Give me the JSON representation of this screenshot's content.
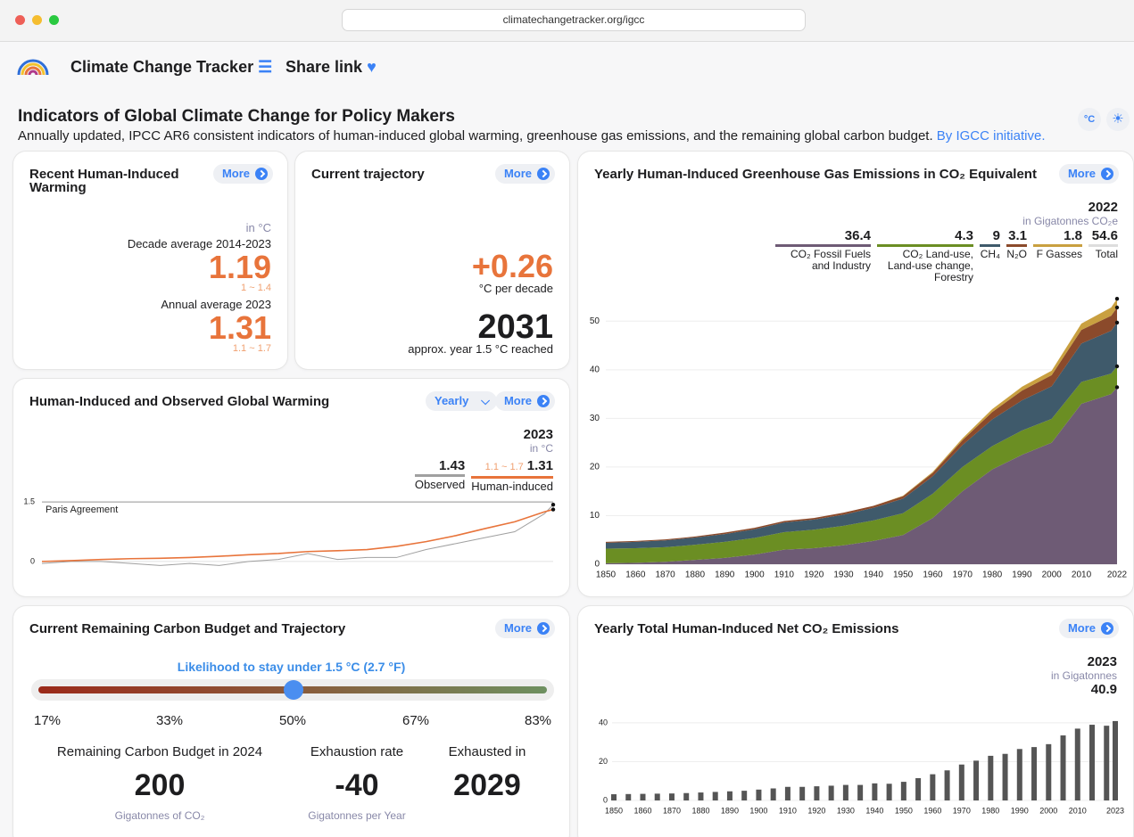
{
  "browser": {
    "url": "climatechangetracker.org/igcc"
  },
  "header": {
    "brand": "Climate Change Tracker",
    "share": "Share link"
  },
  "page": {
    "title": "Indicators of Global Climate Change for Policy Makers",
    "subtitle": "Annually updated, IPCC AR6 consistent indicators of human-induced global warming, greenhouse gas emissions, and the remaining global carbon budget.",
    "link": "By IGCC initiative.",
    "unit_button": "°C"
  },
  "warming_card": {
    "title": "Recent Human-Induced Warming",
    "more": "More",
    "unit": "in °C",
    "decade_label": "Decade average 2014-2023",
    "decade_value": "1.19",
    "decade_range": "1 ~ 1.4",
    "annual_label": "Annual average 2023",
    "annual_value": "1.31",
    "annual_range": "1.1 ~ 1.7"
  },
  "trajectory_card": {
    "title": "Current trajectory",
    "more": "More",
    "rate": "+0.26",
    "rate_unit": "°C per decade",
    "year": "2031",
    "year_label": "approx. year 1.5 °C reached"
  },
  "budget_card": {
    "title": "Current Remaining Carbon Budget and Trajectory",
    "more": "More",
    "slider_title": "Likelihood to stay under 1.5 °C (2.7 °F)",
    "likelihoods": [
      "17%",
      "33%",
      "50%",
      "67%",
      "83%"
    ],
    "stats": [
      {
        "label": "Remaining Carbon Budget in 2024",
        "value": "200",
        "unit": "Gigatonnes of CO₂"
      },
      {
        "label": "Exhaustion rate",
        "value": "-40",
        "unit": "Gigatonnes per Year"
      },
      {
        "label": "Exhausted in",
        "value": "2029"
      }
    ]
  },
  "chart_data": [
    {
      "type": "area",
      "stacked": true,
      "title": "Yearly Human-Induced Greenhouse Gas Emissions in CO₂ Equivalent",
      "more": "More",
      "unit": "in Gigatonnes CO₂e",
      "x": [
        1850,
        1860,
        1870,
        1880,
        1890,
        1900,
        1910,
        1920,
        1930,
        1940,
        1950,
        1960,
        1970,
        1980,
        1990,
        2000,
        2010,
        2020,
        2022
      ],
      "series": [
        {
          "name": "CO₂ Fossil Fuels and Industry",
          "color": "#6e5b75",
          "values": [
            0.2,
            0.3,
            0.5,
            0.9,
            1.3,
            2.0,
            3.0,
            3.3,
            3.9,
            4.8,
            6.0,
            9.5,
            15.0,
            19.5,
            22.5,
            25.0,
            33.0,
            35.0,
            36.4
          ]
        },
        {
          "name": "CO₂ Land-use, Land-use change, Forestry",
          "color": "#6b8e23",
          "values": [
            3.0,
            3.0,
            3.0,
            3.1,
            3.3,
            3.4,
            3.6,
            3.8,
            4.0,
            4.2,
            4.5,
            5.0,
            5.0,
            4.8,
            5.0,
            4.9,
            4.5,
            4.2,
            4.3
          ]
        },
        {
          "name": "CH₄",
          "color": "#3f5a6b",
          "values": [
            1.2,
            1.3,
            1.4,
            1.5,
            1.6,
            1.8,
            2.0,
            2.1,
            2.3,
            2.6,
            3.0,
            3.6,
            4.5,
            5.5,
            6.2,
            6.7,
            7.9,
            8.8,
            9
          ]
        },
        {
          "name": "N₂O",
          "color": "#8b4a2b",
          "values": [
            0.2,
            0.2,
            0.2,
            0.2,
            0.3,
            0.3,
            0.3,
            0.3,
            0.4,
            0.4,
            0.5,
            0.7,
            1.0,
            1.5,
            2.0,
            2.3,
            2.8,
            3.1,
            3.1
          ]
        },
        {
          "name": "F Gasses",
          "color": "#c9a040",
          "values": [
            0,
            0,
            0,
            0,
            0,
            0,
            0,
            0,
            0,
            0,
            0.1,
            0.2,
            0.4,
            0.6,
            0.8,
            0.9,
            1.3,
            1.7,
            1.8
          ]
        }
      ],
      "total": {
        "name": "Total",
        "value": 54.6
      },
      "xlim": [
        1850,
        2022
      ],
      "xticks": [
        1850,
        1860,
        1870,
        1880,
        1890,
        1900,
        1910,
        1920,
        1930,
        1940,
        1950,
        1960,
        1970,
        1980,
        1990,
        2000,
        2010,
        2022
      ],
      "ylim": [
        0,
        55
      ],
      "yticks": [
        0,
        10,
        20,
        30,
        40,
        50
      ],
      "grid": true
    },
    {
      "type": "line",
      "title": "Human-Induced and Observed Global Warming",
      "more": "More",
      "dropdown": "Yearly",
      "unit": "in °C",
      "x": [
        1850,
        1860,
        1870,
        1880,
        1890,
        1900,
        1910,
        1920,
        1930,
        1940,
        1950,
        1960,
        1970,
        1980,
        1990,
        2000,
        2010,
        2020,
        2023
      ],
      "series": [
        {
          "name": "Observed",
          "color": "#a0a0a0",
          "values": [
            -0.05,
            0.0,
            0.0,
            -0.05,
            -0.1,
            -0.05,
            -0.1,
            0.0,
            0.05,
            0.2,
            0.05,
            0.1,
            0.1,
            0.3,
            0.45,
            0.6,
            0.75,
            1.2,
            1.43
          ]
        },
        {
          "name": "Human-induced",
          "color": "#e8743b",
          "range_label": "1.1 ~ 1.7",
          "values": [
            0.0,
            0.02,
            0.05,
            0.07,
            0.08,
            0.1,
            0.13,
            0.17,
            0.2,
            0.25,
            0.27,
            0.3,
            0.38,
            0.5,
            0.65,
            0.83,
            1.0,
            1.25,
            1.31
          ]
        }
      ],
      "annotations": [
        {
          "text": "Paris Agreement",
          "y": 1.5
        }
      ],
      "xlim": [
        1850,
        2023
      ],
      "ylim": [
        -0.25,
        1.75
      ],
      "yticks": [
        0,
        1.5
      ],
      "grid": true
    },
    {
      "type": "bar",
      "title": "Yearly Total Human-Induced Net CO₂ Emissions",
      "more": "More",
      "unit": "in Gigatonnes",
      "color": "#555555",
      "x": [
        1850,
        1855,
        1860,
        1865,
        1870,
        1875,
        1880,
        1885,
        1890,
        1895,
        1900,
        1905,
        1910,
        1915,
        1920,
        1925,
        1930,
        1935,
        1940,
        1945,
        1950,
        1955,
        1960,
        1965,
        1970,
        1975,
        1980,
        1985,
        1990,
        1995,
        2000,
        2005,
        2010,
        2015,
        2020,
        2023
      ],
      "values": [
        3.2,
        3.3,
        3.4,
        3.5,
        3.6,
        3.8,
        4.1,
        4.4,
        4.7,
        5.0,
        5.6,
        6.2,
        7.0,
        7.0,
        7.3,
        7.6,
        8.0,
        8.0,
        8.8,
        8.6,
        9.6,
        11.5,
        13.5,
        15.5,
        18.5,
        20.5,
        23.0,
        24.0,
        26.5,
        27.5,
        29.0,
        33.5,
        37.0,
        39.0,
        38.5,
        40.9
      ],
      "xlim": [
        1850,
        2023
      ],
      "xticks": [
        1850,
        1860,
        1870,
        1880,
        1890,
        1900,
        1910,
        1920,
        1930,
        1940,
        1950,
        1960,
        1970,
        1980,
        1990,
        2000,
        2010,
        2023
      ],
      "ylim": [
        0,
        45
      ],
      "yticks": [
        0,
        20,
        40
      ],
      "grid": true
    }
  ]
}
